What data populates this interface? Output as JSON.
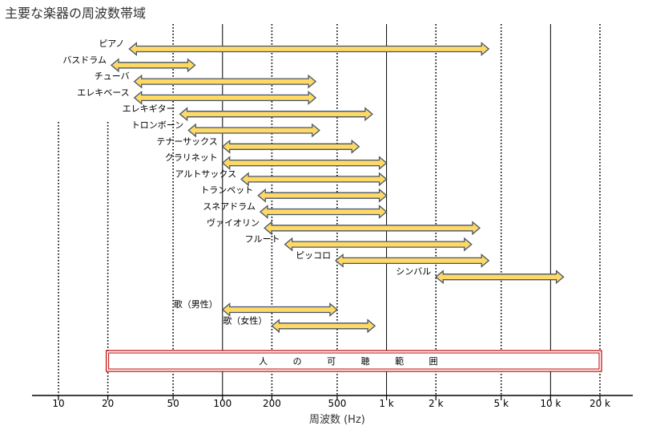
{
  "chart_data": {
    "type": "range-bar",
    "title": "主要な楽器の周波数帯域",
    "xlabel": "周波数 (Hz)",
    "x_scale": "log",
    "xlim": [
      10,
      22000
    ],
    "ticks": [
      {
        "value": 10,
        "label": "10"
      },
      {
        "value": 20,
        "label": "20"
      },
      {
        "value": 50,
        "label": "50"
      },
      {
        "value": 100,
        "label": "100"
      },
      {
        "value": 200,
        "label": "200"
      },
      {
        "value": 500,
        "label": "500"
      },
      {
        "value": 1000,
        "label": "1 k"
      },
      {
        "value": 2000,
        "label": "2 k"
      },
      {
        "value": 5000,
        "label": "5 k"
      },
      {
        "value": 10000,
        "label": "10 k"
      },
      {
        "value": 20000,
        "label": "20 k"
      }
    ],
    "solid_gridlines": [
      100,
      1000,
      10000
    ],
    "dotted_gridlines": [
      10,
      20,
      50,
      200,
      500,
      2000,
      5000,
      20000
    ],
    "colors": {
      "bar_fill": "#FFD966",
      "bar_stroke": "#44546A",
      "hearing_box": "#C00000"
    },
    "instruments": [
      {
        "name": "ピアノ",
        "low": 27,
        "high": 4200
      },
      {
        "name": "バスドラム",
        "low": 21,
        "high": 68
      },
      {
        "name": "チューバ",
        "low": 29,
        "high": 370
      },
      {
        "name": "エレキベース",
        "low": 29,
        "high": 370
      },
      {
        "name": "エレキギター",
        "low": 55,
        "high": 820
      },
      {
        "name": "トロンボーン",
        "low": 62,
        "high": 390
      },
      {
        "name": "テナーサックス",
        "low": 100,
        "high": 680
      },
      {
        "name": "クラリネット",
        "low": 100,
        "high": 1000
      },
      {
        "name": "アルトサックス",
        "low": 130,
        "high": 1000
      },
      {
        "name": "トランペット",
        "low": 165,
        "high": 1000
      },
      {
        "name": "スネアドラム",
        "low": 170,
        "high": 1000
      },
      {
        "name": "ヴァイオリン",
        "low": 180,
        "high": 3700
      },
      {
        "name": "フルート",
        "low": 240,
        "high": 3300
      },
      {
        "name": "ピッコロ",
        "low": 490,
        "high": 4200
      },
      {
        "name": "シンバル",
        "low": 2000,
        "high": 12000
      },
      {
        "name": "歌（男性）",
        "low": 100,
        "high": 500
      },
      {
        "name": "歌（女性）",
        "low": 200,
        "high": 850
      }
    ],
    "hearing_range": {
      "label": "人 の 可 聴 範 囲",
      "low": 20,
      "high": 20000
    }
  }
}
